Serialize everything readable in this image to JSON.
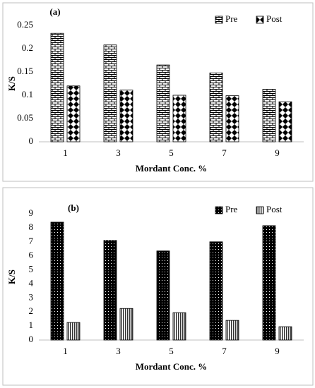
{
  "chart_data": [
    {
      "type": "bar",
      "title": "(a)",
      "y_label": "K/S",
      "x_label": "Mordant Conc. %",
      "categories": [
        "1",
        "3",
        "5",
        "7",
        "9"
      ],
      "series": [
        {
          "name": "Pre",
          "color": "#000000",
          "pattern": "brick",
          "values": [
            0.233,
            0.208,
            0.165,
            0.148,
            0.113
          ]
        },
        {
          "name": "Post",
          "color": "#000000",
          "pattern": "diamond",
          "values": [
            0.12,
            0.111,
            0.1,
            0.099,
            0.086
          ]
        }
      ],
      "ylim": [
        0,
        0.25
      ],
      "yticks": [
        0,
        0.05,
        0.1,
        0.15,
        0.2,
        0.25
      ],
      "grid": false,
      "legend": "top-right"
    },
    {
      "type": "bar",
      "title": "(b)",
      "y_label": "K/S",
      "x_label": "Mordant Conc. %",
      "categories": [
        "1",
        "3",
        "5",
        "7",
        "9"
      ],
      "series": [
        {
          "name": "Pre",
          "color": "#000000",
          "pattern": "dots",
          "values": [
            8.4,
            7.1,
            6.35,
            7.0,
            8.15
          ]
        },
        {
          "name": "Post",
          "color": "#000000",
          "pattern": "stripes",
          "values": [
            1.25,
            2.25,
            1.95,
            1.4,
            0.95
          ]
        }
      ],
      "ylim": [
        0,
        9
      ],
      "yticks": [
        0,
        1,
        2,
        3,
        4,
        5,
        6,
        7,
        8,
        9
      ],
      "grid": false,
      "legend": "top-right"
    }
  ]
}
